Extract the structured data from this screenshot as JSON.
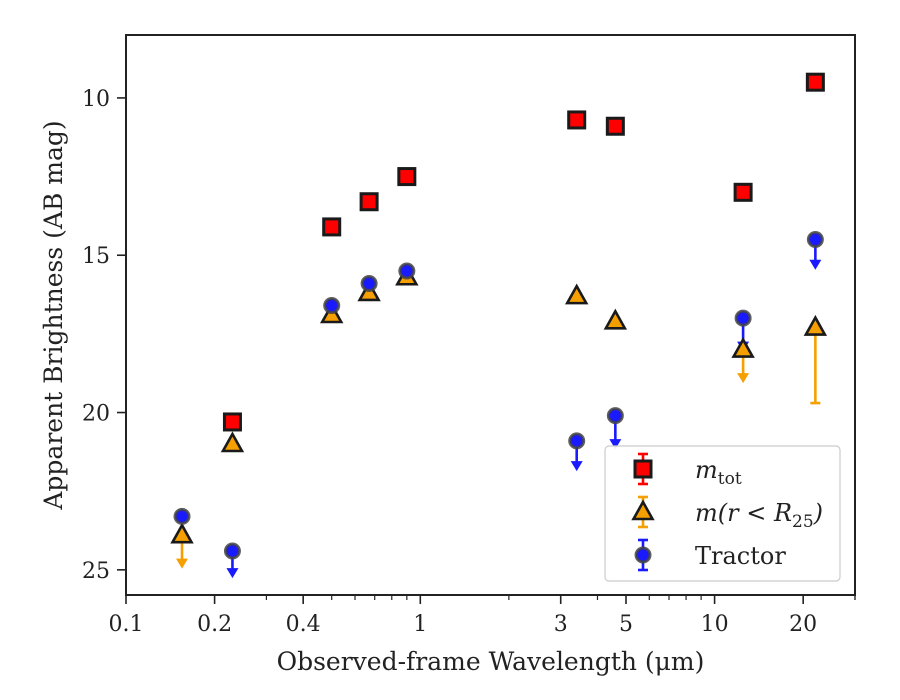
{
  "chart_data": {
    "type": "scatter",
    "xlabel": "Observed-frame Wavelength (μm)",
    "ylabel": "Apparent Brightness (AB mag)",
    "xscale": "log",
    "xlim": [
      0.1,
      30
    ],
    "ylim": [
      25.8,
      8.0
    ],
    "y_inverted": true,
    "x_ticks": [
      {
        "value": 0.1,
        "label": "0.1"
      },
      {
        "value": 0.2,
        "label": "0.2"
      },
      {
        "value": 0.4,
        "label": "0.4"
      },
      {
        "value": 1,
        "label": "1"
      },
      {
        "value": 3,
        "label": "3"
      },
      {
        "value": 5,
        "label": "5"
      },
      {
        "value": 10,
        "label": "10"
      },
      {
        "value": 20,
        "label": "20"
      }
    ],
    "y_ticks": [
      {
        "value": 10,
        "label": "10"
      },
      {
        "value": 15,
        "label": "15"
      },
      {
        "value": 20,
        "label": "20"
      },
      {
        "value": 25,
        "label": "25"
      }
    ],
    "grid": false,
    "legend_position": "lower-right",
    "series": [
      {
        "name": "m_tot",
        "marker": "square",
        "color": "#ff0000",
        "points": [
          {
            "x": 0.23,
            "y": 20.3
          },
          {
            "x": 0.5,
            "y": 14.1
          },
          {
            "x": 0.67,
            "y": 13.3
          },
          {
            "x": 0.9,
            "y": 12.5
          },
          {
            "x": 3.4,
            "y": 10.7
          },
          {
            "x": 4.6,
            "y": 10.9
          },
          {
            "x": 12.5,
            "y": 13.0
          },
          {
            "x": 22,
            "y": 9.5
          }
        ]
      },
      {
        "name": "m(r < R25)",
        "marker": "triangle",
        "color": "#f5a000",
        "points": [
          {
            "x": 0.155,
            "y": 23.9,
            "upper_limit": true,
            "arrow_to": 24.9
          },
          {
            "x": 0.23,
            "y": 21.0
          },
          {
            "x": 0.5,
            "y": 16.9
          },
          {
            "x": 0.67,
            "y": 16.2
          },
          {
            "x": 0.9,
            "y": 15.7
          },
          {
            "x": 3.4,
            "y": 16.3
          },
          {
            "x": 4.6,
            "y": 17.1
          },
          {
            "x": 12.5,
            "y": 18.0,
            "upper_limit": true,
            "arrow_to": 19.0
          },
          {
            "x": 22,
            "y": 17.3,
            "err_low": 2.4,
            "err_high": 0
          }
        ]
      },
      {
        "name": "Tractor",
        "marker": "circle",
        "color": "#1a1aff",
        "points": [
          {
            "x": 0.155,
            "y": 23.3
          },
          {
            "x": 0.23,
            "y": 24.4,
            "upper_limit": true,
            "arrow_to": 25.2
          },
          {
            "x": 0.5,
            "y": 16.6
          },
          {
            "x": 0.67,
            "y": 15.9
          },
          {
            "x": 0.9,
            "y": 15.5
          },
          {
            "x": 3.4,
            "y": 20.9,
            "upper_limit": true,
            "arrow_to": 21.8
          },
          {
            "x": 4.6,
            "y": 20.1,
            "upper_limit": true,
            "arrow_to": 21.1
          },
          {
            "x": 12.5,
            "y": 17.0,
            "upper_limit": true,
            "arrow_to": 18.0
          },
          {
            "x": 22,
            "y": 14.5,
            "upper_limit": true,
            "arrow_to": 15.4
          }
        ]
      }
    ],
    "legend": [
      {
        "series": "m_tot",
        "base": "m",
        "sub": "tot",
        "suffix": ""
      },
      {
        "series": "m(r < R25)",
        "base": "m(r < R",
        "sub": "25",
        "suffix": ")"
      },
      {
        "series": "Tractor",
        "base": "Tractor",
        "sub": "",
        "suffix": ""
      }
    ]
  }
}
